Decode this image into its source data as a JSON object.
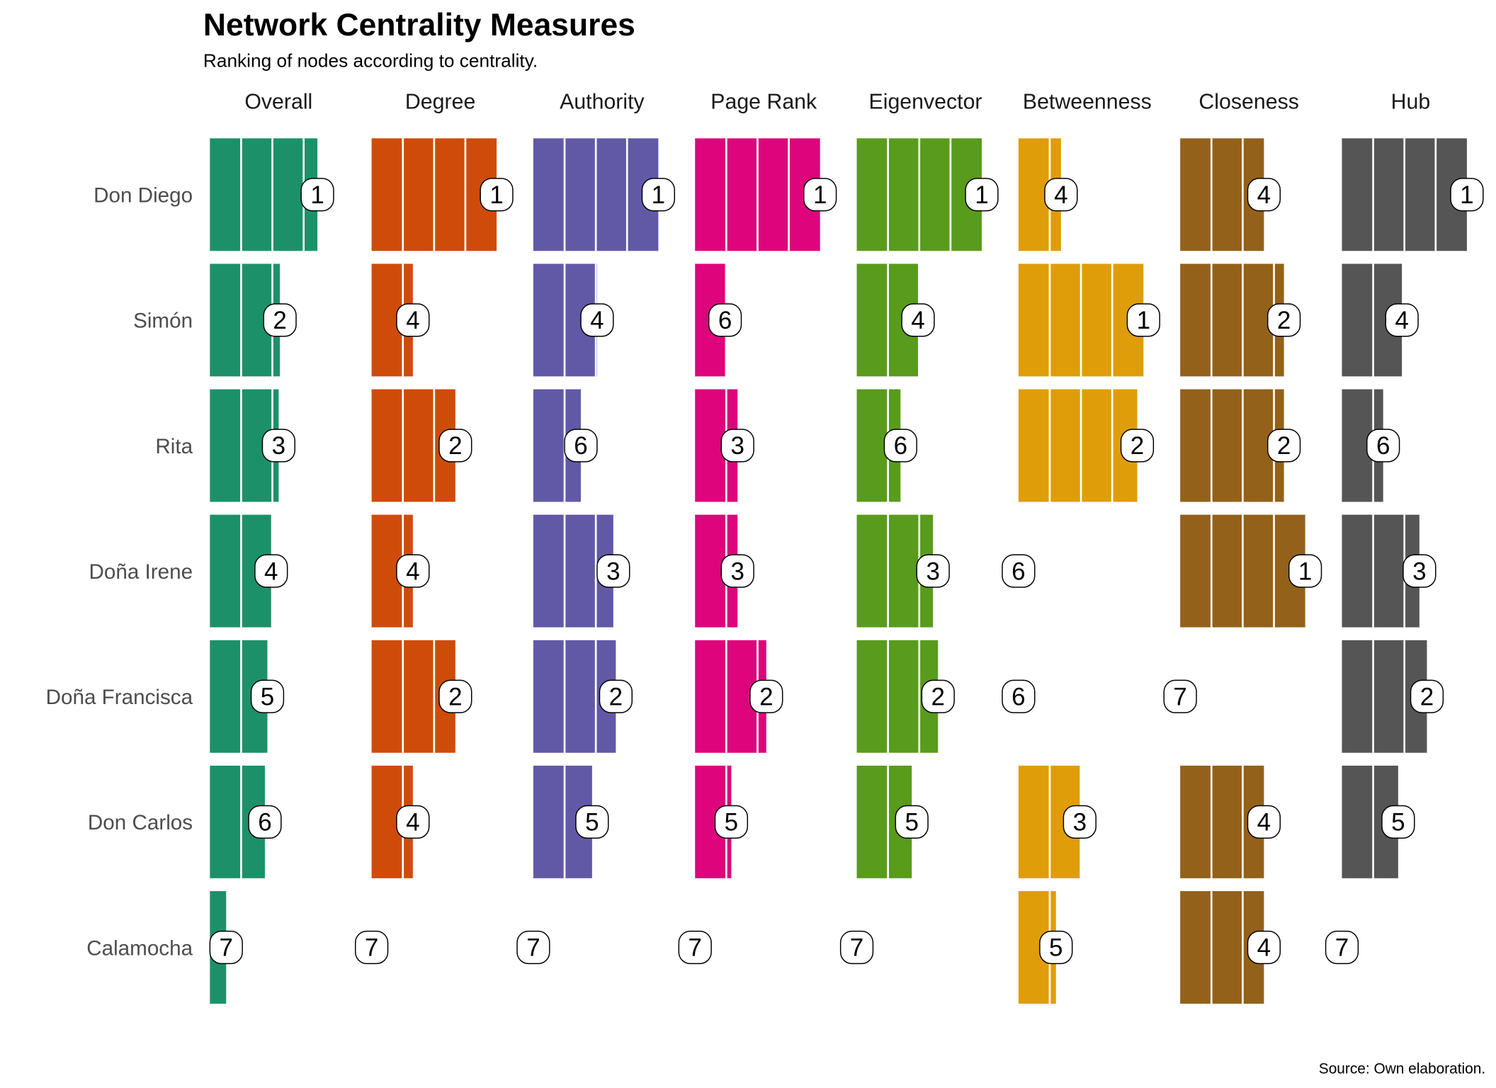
{
  "chart_data": {
    "type": "bar",
    "title": "Network Centrality Measures",
    "subtitle": "Ranking of nodes according to centrality.",
    "caption": "Source: Own elaboration.",
    "xlim": [
      0,
      1
    ],
    "grid": true,
    "grid_breaks": [
      0.25,
      0.5,
      0.75
    ],
    "nodes": [
      "Don Diego",
      "Simón",
      "Rita",
      "Doña Irene",
      "Doña Francisca",
      "Don Carlos",
      "Calamocha"
    ],
    "measures": [
      {
        "name": "Overall",
        "color": "#1C9169",
        "values": [
          0.86,
          0.56,
          0.55,
          0.49,
          0.46,
          0.44,
          0.13
        ],
        "ranks": [
          1,
          2,
          3,
          4,
          5,
          6,
          7
        ]
      },
      {
        "name": "Degree",
        "color": "#CF4B0A",
        "values": [
          1.0,
          0.33,
          0.67,
          0.33,
          0.67,
          0.33,
          0.0
        ],
        "ranks": [
          1,
          4,
          2,
          4,
          2,
          4,
          7
        ]
      },
      {
        "name": "Authority",
        "color": "#6159A6",
        "values": [
          1.0,
          0.51,
          0.38,
          0.64,
          0.66,
          0.47,
          0.0
        ],
        "ranks": [
          1,
          4,
          6,
          3,
          2,
          5,
          7
        ]
      },
      {
        "name": "Page Rank",
        "color": "#DE047C",
        "values": [
          1.0,
          0.24,
          0.34,
          0.34,
          0.57,
          0.29,
          0.0
        ],
        "ranks": [
          1,
          6,
          3,
          3,
          2,
          5,
          7
        ]
      },
      {
        "name": "Eigenvector",
        "color": "#599B1C",
        "values": [
          1.0,
          0.49,
          0.35,
          0.61,
          0.65,
          0.44,
          0.0
        ],
        "ranks": [
          1,
          4,
          6,
          3,
          2,
          5,
          7
        ]
      },
      {
        "name": "Betweenness",
        "color": "#E09D0A",
        "values": [
          0.34,
          1.0,
          0.95,
          0.0,
          0.0,
          0.49,
          0.3
        ],
        "ranks": [
          4,
          1,
          2,
          6,
          6,
          3,
          5
        ]
      },
      {
        "name": "Closeness",
        "color": "#936119",
        "values": [
          0.67,
          0.83,
          0.83,
          1.0,
          0.0,
          0.67,
          0.67
        ],
        "ranks": [
          4,
          2,
          2,
          1,
          7,
          4,
          4
        ]
      },
      {
        "name": "Hub",
        "color": "#555555",
        "values": [
          1.0,
          0.48,
          0.33,
          0.62,
          0.68,
          0.45,
          0.0
        ],
        "ranks": [
          1,
          4,
          6,
          3,
          2,
          5,
          7
        ]
      }
    ]
  }
}
